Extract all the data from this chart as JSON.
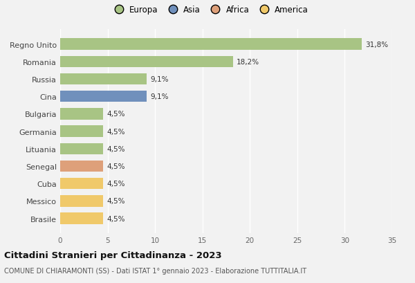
{
  "countries": [
    "Brasile",
    "Messico",
    "Cuba",
    "Senegal",
    "Lituania",
    "Germania",
    "Bulgaria",
    "Cina",
    "Russia",
    "Romania",
    "Regno Unito"
  ],
  "values": [
    4.5,
    4.5,
    4.5,
    4.5,
    4.5,
    4.5,
    4.5,
    9.1,
    9.1,
    18.2,
    31.8
  ],
  "labels": [
    "4,5%",
    "4,5%",
    "4,5%",
    "4,5%",
    "4,5%",
    "4,5%",
    "4,5%",
    "9,1%",
    "9,1%",
    "18,2%",
    "31,8%"
  ],
  "colors": [
    "#f0c96a",
    "#f0c96a",
    "#f0c96a",
    "#dea07a",
    "#a8c484",
    "#a8c484",
    "#a8c484",
    "#7090bc",
    "#a8c484",
    "#a8c484",
    "#a8c484"
  ],
  "legend_labels": [
    "Europa",
    "Asia",
    "Africa",
    "America"
  ],
  "legend_colors": [
    "#a8c484",
    "#7090bc",
    "#dea07a",
    "#f0c96a"
  ],
  "xlim": [
    0,
    35
  ],
  "xticks": [
    0,
    5,
    10,
    15,
    20,
    25,
    30,
    35
  ],
  "title": "Cittadini Stranieri per Cittadinanza - 2023",
  "subtitle": "COMUNE DI CHIARAMONTI (SS) - Dati ISTAT 1° gennaio 2023 - Elaborazione TUTTITALIA.IT",
  "background_color": "#f2f2f2",
  "grid_color": "#ffffff",
  "bar_height": 0.65
}
